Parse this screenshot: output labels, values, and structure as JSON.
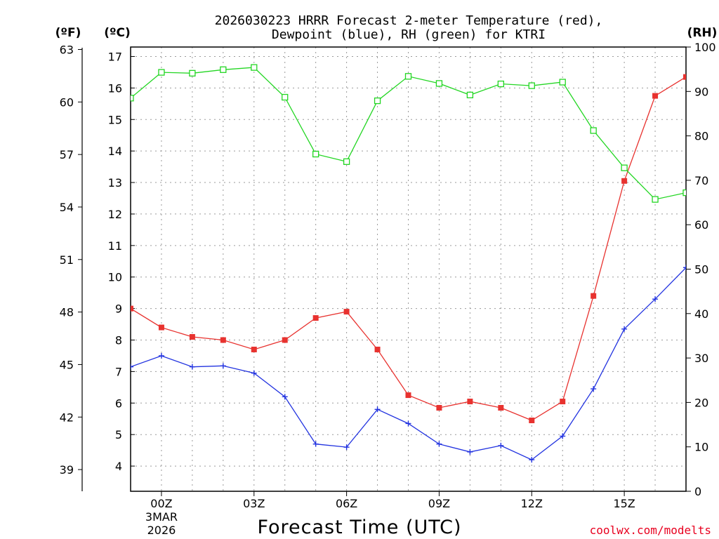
{
  "chart_data": {
    "type": "line",
    "title_line1": "2026030223 HRRR Forecast 2-meter Temperature (red),",
    "title_line2": "Dewpoint (blue), RH (green) for KTRI",
    "units": {
      "fahrenheit": "(ºF)",
      "celsius": "(ºC)",
      "rh": "(RH)"
    },
    "xlabel": "Forecast Time (UTC)",
    "credit": "coolwx.com/modelts",
    "x_hours": [
      -1,
      0,
      1,
      2,
      3,
      4,
      5,
      6,
      7,
      8,
      9,
      10,
      11,
      12,
      13,
      14,
      15,
      16,
      17
    ],
    "xlim": [
      -1,
      17
    ],
    "x_ticks": [
      {
        "hour": 0,
        "label": "00Z",
        "sub1": "3MAR",
        "sub2": "2026"
      },
      {
        "hour": 3,
        "label": "03Z"
      },
      {
        "hour": 6,
        "label": "06Z"
      },
      {
        "hour": 9,
        "label": "09Z"
      },
      {
        "hour": 12,
        "label": "12Z"
      },
      {
        "hour": 15,
        "label": "15Z"
      }
    ],
    "celsius_axis": {
      "ylim": [
        3.2,
        17.3
      ],
      "ticks": [
        "4",
        "5",
        "6",
        "7",
        "8",
        "9",
        "10",
        "11",
        "12",
        "13",
        "14",
        "15",
        "16",
        "17"
      ]
    },
    "fahrenheit_axis": {
      "ticks": [
        "39",
        "42",
        "45",
        "48",
        "51",
        "54",
        "57",
        "60",
        "63"
      ]
    },
    "rh_axis": {
      "ylim": [
        0,
        100
      ],
      "ticks": [
        "0",
        "10",
        "20",
        "30",
        "40",
        "50",
        "60",
        "70",
        "80",
        "90",
        "100"
      ]
    },
    "series": [
      {
        "name": "2-meter Temperature",
        "axis": "celsius",
        "color": "#e8322f",
        "marker": "filled-square",
        "values": [
          9.0,
          8.4,
          8.1,
          8.0,
          7.7,
          8.0,
          8.7,
          8.9,
          7.7,
          6.25,
          5.85,
          6.05,
          5.85,
          5.45,
          6.05,
          9.4,
          13.05,
          15.75,
          16.35
        ]
      },
      {
        "name": "Dewpoint",
        "axis": "celsius",
        "color": "#2233e0",
        "marker": "plus",
        "values": [
          7.15,
          7.5,
          7.15,
          7.18,
          6.95,
          6.2,
          4.7,
          4.6,
          5.8,
          5.35,
          4.7,
          4.45,
          4.65,
          4.2,
          4.95,
          6.45,
          8.35,
          9.3,
          10.3
        ]
      },
      {
        "name": "RH",
        "axis": "rh",
        "color": "#22d622",
        "marker": "open-square",
        "values": [
          88.5,
          94.3,
          94.1,
          94.9,
          95.4,
          88.7,
          75.9,
          74.2,
          87.9,
          93.4,
          91.8,
          89.2,
          91.7,
          91.3,
          92.1,
          81.2,
          72.8,
          65.7,
          67.2
        ]
      }
    ]
  }
}
